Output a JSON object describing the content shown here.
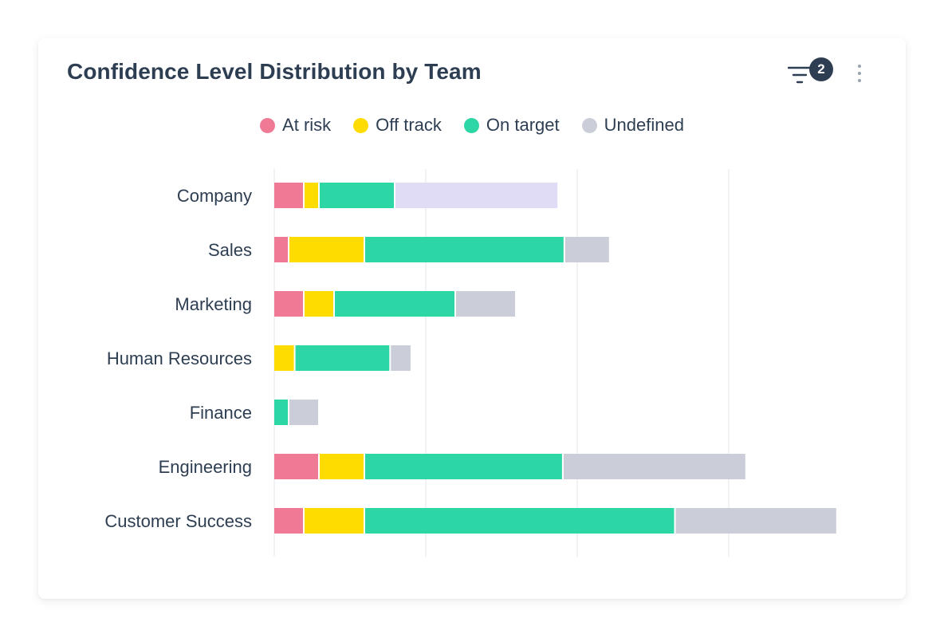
{
  "card": {
    "title": "Confidence Level Distribution by Team",
    "filter_count": "2",
    "filter_icon": "filter-icon",
    "more_icon": "more-vertical-icon"
  },
  "colors": {
    "at_risk": "#f07a95",
    "off_track": "#ffdc00",
    "on_target": "#2dd6a5",
    "undefined": "#cbced9",
    "undefined_highlight": "#e1dcf5",
    "grid": "#eceef2",
    "text": "#2e3e52"
  },
  "chart_data": {
    "type": "bar",
    "orientation": "horizontal",
    "stacked": true,
    "categories": [
      "Company",
      "Sales",
      "Marketing",
      "Human Resources",
      "Finance",
      "Engineering",
      "Customer Success"
    ],
    "series": [
      {
        "name": "At risk",
        "values": [
          2,
          1,
          2,
          0,
          0,
          3,
          2
        ]
      },
      {
        "name": "Off track",
        "values": [
          1,
          5,
          2,
          1.4,
          0,
          3,
          4
        ]
      },
      {
        "name": "On target",
        "values": [
          5,
          13.2,
          8,
          6.3,
          1,
          13.1,
          20.5
        ]
      },
      {
        "name": "Undefined",
        "values": [
          10.8,
          3,
          4,
          1.4,
          2,
          12.1,
          10.7
        ]
      }
    ],
    "highlighted": {
      "category": "Company",
      "series": "Undefined"
    },
    "xlim": [
      0,
      36
    ],
    "grid": true,
    "grid_step": 10,
    "legend_position": "top-center",
    "title": "Confidence Level Distribution by Team",
    "xlabel": "",
    "ylabel": ""
  }
}
